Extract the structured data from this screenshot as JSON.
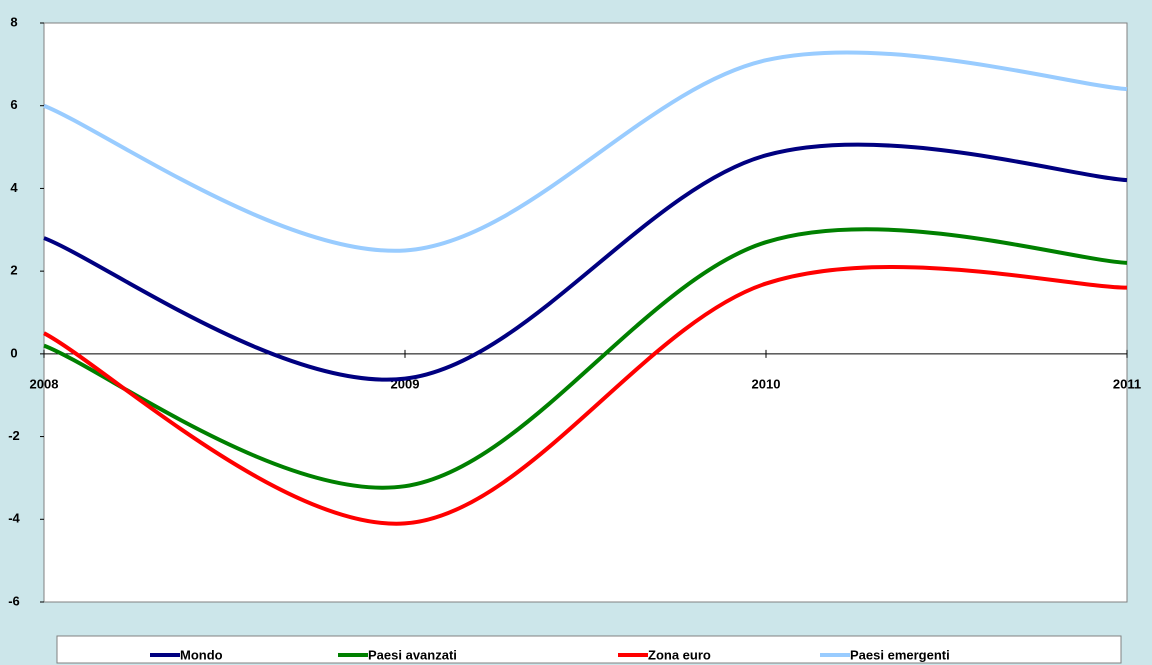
{
  "chart_data": {
    "type": "line",
    "x": [
      2008,
      2009,
      2010,
      2011
    ],
    "xlim": [
      2008,
      2011
    ],
    "xticks": [
      2008,
      2009,
      2010,
      2011
    ],
    "ylim": [
      -6,
      8
    ],
    "yticks": [
      -6,
      -4,
      -2,
      0,
      2,
      4,
      6,
      8
    ],
    "smooth": true,
    "series": [
      {
        "name": "Mondo",
        "color": "#000080",
        "values": [
          2.8,
          -0.6,
          4.8,
          4.2
        ]
      },
      {
        "name": "Paesi avanzati",
        "color": "#008000",
        "values": [
          0.2,
          -3.2,
          2.7,
          2.2
        ]
      },
      {
        "name": "Zona euro",
        "color": "#ff0000",
        "values": [
          0.5,
          -4.1,
          1.7,
          1.6
        ]
      },
      {
        "name": "Paesi emergenti",
        "color": "#99ccff",
        "values": [
          6.0,
          2.5,
          7.1,
          6.4
        ]
      }
    ]
  }
}
